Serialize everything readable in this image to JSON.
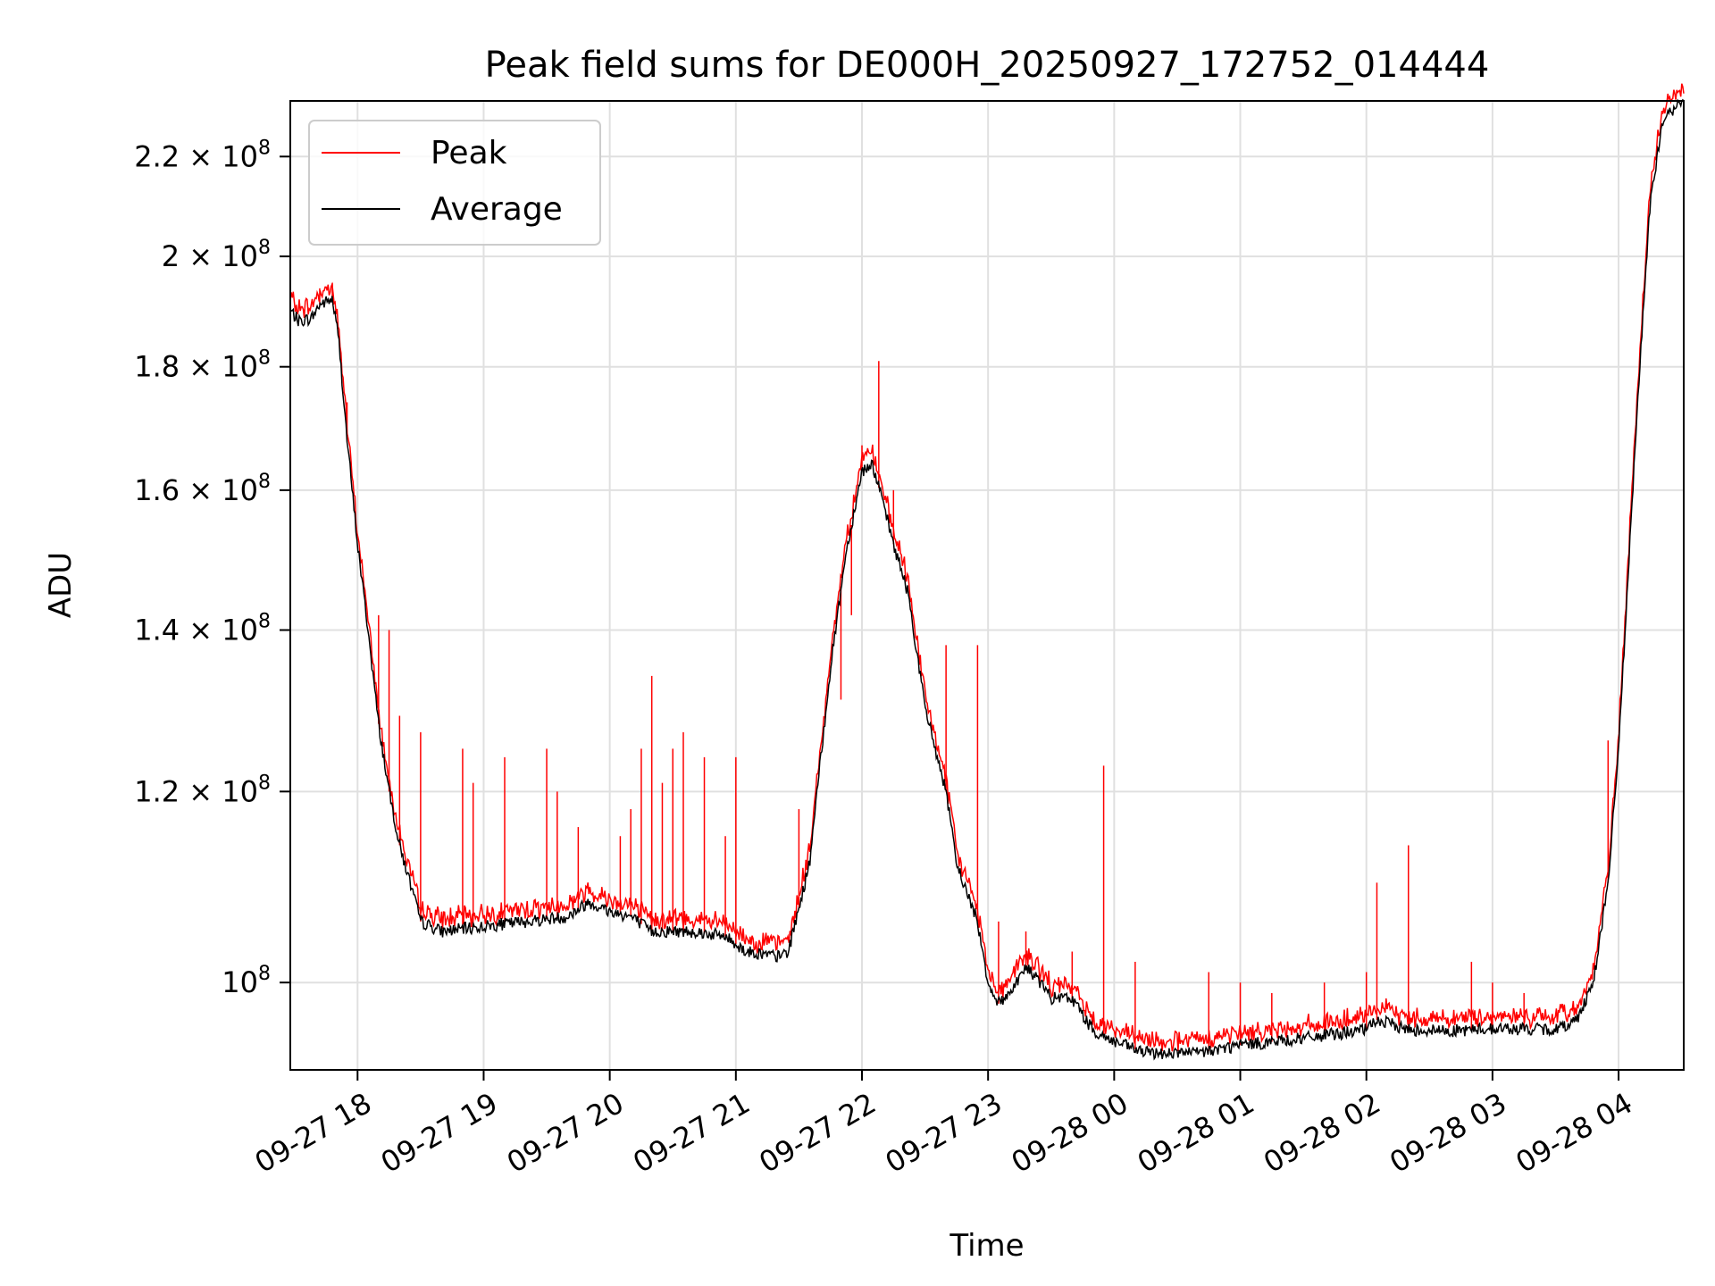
{
  "chart_data": {
    "type": "line",
    "title": "Peak field sums for DE000H_20250927_172752_014444",
    "xlabel": "Time",
    "ylabel": "ADU",
    "yscale": "log",
    "ylim": [
      92000000,
      232000000
    ],
    "xlim": [
      "2025-09-27 17:28",
      "2025-09-28 04:31"
    ],
    "grid": true,
    "legend": {
      "placement": "top-left"
    },
    "x_ticks": [
      "2025-09-27 18:00",
      "2025-09-27 19:00",
      "2025-09-27 20:00",
      "2025-09-27 21:00",
      "2025-09-27 22:00",
      "2025-09-27 23:00",
      "2025-09-28 00:00",
      "2025-09-28 01:00",
      "2025-09-28 02:00",
      "2025-09-28 03:00",
      "2025-09-28 04:00"
    ],
    "x_tick_labels": [
      "09-27 18",
      "09-27 19",
      "09-27 20",
      "09-27 21",
      "09-27 22",
      "09-27 23",
      "09-28 00",
      "09-28 01",
      "09-28 02",
      "09-28 03",
      "09-28 04"
    ],
    "y_ticks": [
      100000000,
      120000000,
      140000000,
      160000000,
      180000000,
      200000000,
      220000000
    ],
    "y_tick_labels": [
      {
        "mantissa": "",
        "exponent": "8"
      },
      {
        "mantissa": "1.2",
        "exponent": "8"
      },
      {
        "mantissa": "1.4",
        "exponent": "8"
      },
      {
        "mantissa": "1.6",
        "exponent": "8"
      },
      {
        "mantissa": "1.8",
        "exponent": "8"
      },
      {
        "mantissa": "2",
        "exponent": "8"
      },
      {
        "mantissa": "2.2",
        "exponent": "8"
      }
    ],
    "average_points": [
      [
        "2025-09-27 17:28",
        190000000
      ],
      [
        "2025-09-27 17:32",
        188000000
      ],
      [
        "2025-09-27 17:38",
        188500000
      ],
      [
        "2025-09-27 17:42",
        191000000
      ],
      [
        "2025-09-27 17:48",
        192000000
      ],
      [
        "2025-09-27 17:51",
        185000000
      ],
      [
        "2025-09-27 17:55",
        168000000
      ],
      [
        "2025-09-27 18:00",
        152000000
      ],
      [
        "2025-09-27 18:05",
        140000000
      ],
      [
        "2025-09-27 18:10",
        128000000
      ],
      [
        "2025-09-27 18:15",
        120000000
      ],
      [
        "2025-09-27 18:20",
        114000000
      ],
      [
        "2025-09-27 18:25",
        110000000
      ],
      [
        "2025-09-27 18:30",
        106000000
      ],
      [
        "2025-09-27 18:40",
        105000000
      ],
      [
        "2025-09-27 19:00",
        105500000
      ],
      [
        "2025-09-27 19:20",
        106000000
      ],
      [
        "2025-09-27 19:40",
        106500000
      ],
      [
        "2025-09-27 19:50",
        108000000
      ],
      [
        "2025-09-27 20:00",
        107000000
      ],
      [
        "2025-09-27 20:10",
        106500000
      ],
      [
        "2025-09-27 20:20",
        105000000
      ],
      [
        "2025-09-27 20:40",
        105000000
      ],
      [
        "2025-09-27 20:55",
        104500000
      ],
      [
        "2025-09-27 21:05",
        103000000
      ],
      [
        "2025-09-27 21:20",
        102500000
      ],
      [
        "2025-09-27 21:25",
        103000000
      ],
      [
        "2025-09-27 21:35",
        112000000
      ],
      [
        "2025-09-27 21:45",
        135000000
      ],
      [
        "2025-09-27 21:52",
        150000000
      ],
      [
        "2025-09-27 22:00",
        163000000
      ],
      [
        "2025-09-27 22:05",
        164000000
      ],
      [
        "2025-09-27 22:10",
        158000000
      ],
      [
        "2025-09-27 22:15",
        152000000
      ],
      [
        "2025-09-27 22:22",
        145000000
      ],
      [
        "2025-09-27 22:30",
        130000000
      ],
      [
        "2025-09-27 22:40",
        120000000
      ],
      [
        "2025-09-27 22:45",
        112000000
      ],
      [
        "2025-09-27 22:55",
        106000000
      ],
      [
        "2025-09-27 23:00",
        100000000
      ],
      [
        "2025-09-27 23:05",
        98000000
      ],
      [
        "2025-09-27 23:10",
        99000000
      ],
      [
        "2025-09-27 23:18",
        101500000
      ],
      [
        "2025-09-27 23:25",
        100000000
      ],
      [
        "2025-09-27 23:30",
        98500000
      ],
      [
        "2025-09-27 23:40",
        98500000
      ],
      [
        "2025-09-27 23:50",
        95500000
      ],
      [
        "2025-09-28 00:00",
        94500000
      ],
      [
        "2025-09-28 00:15",
        93500000
      ],
      [
        "2025-09-28 00:40",
        93500000
      ],
      [
        "2025-09-28 01:00",
        94200000
      ],
      [
        "2025-09-28 01:30",
        94800000
      ],
      [
        "2025-09-28 02:00",
        95600000
      ],
      [
        "2025-09-28 02:05",
        96500000
      ],
      [
        "2025-09-28 02:20",
        95600000
      ],
      [
        "2025-09-28 02:40",
        95500000
      ],
      [
        "2025-09-28 03:00",
        95700000
      ],
      [
        "2025-09-28 03:30",
        95600000
      ],
      [
        "2025-09-28 03:40",
        96500000
      ],
      [
        "2025-09-28 03:48",
        100000000
      ],
      [
        "2025-09-28 03:55",
        110000000
      ],
      [
        "2025-09-28 04:00",
        125000000
      ],
      [
        "2025-09-28 04:05",
        150000000
      ],
      [
        "2025-09-28 04:10",
        180000000
      ],
      [
        "2025-09-28 04:15",
        210000000
      ],
      [
        "2025-09-28 04:21",
        228000000
      ],
      [
        "2025-09-28 04:31",
        232000000
      ]
    ],
    "peak_spikes": [
      [
        "2025-09-27 17:42",
        194000000
      ],
      [
        "2025-09-27 17:48",
        195000000
      ],
      [
        "2025-09-27 17:55",
        174000000
      ],
      [
        "2025-09-27 18:10",
        142000000
      ],
      [
        "2025-09-27 18:15",
        140000000
      ],
      [
        "2025-09-27 18:20",
        129000000
      ],
      [
        "2025-09-27 18:30",
        127000000
      ],
      [
        "2025-09-27 18:50",
        125000000
      ],
      [
        "2025-09-27 18:55",
        121000000
      ],
      [
        "2025-09-27 19:10",
        124000000
      ],
      [
        "2025-09-27 19:30",
        125000000
      ],
      [
        "2025-09-27 19:35",
        120000000
      ],
      [
        "2025-09-27 19:45",
        116000000
      ],
      [
        "2025-09-27 20:05",
        115000000
      ],
      [
        "2025-09-27 20:10",
        118000000
      ],
      [
        "2025-09-27 20:15",
        125000000
      ],
      [
        "2025-09-27 20:20",
        134000000
      ],
      [
        "2025-09-27 20:25",
        121000000
      ],
      [
        "2025-09-27 20:30",
        125000000
      ],
      [
        "2025-09-27 20:35",
        127000000
      ],
      [
        "2025-09-27 20:45",
        124000000
      ],
      [
        "2025-09-27 20:55",
        115000000
      ],
      [
        "2025-09-27 21:00",
        124000000
      ],
      [
        "2025-09-27 21:30",
        118000000
      ],
      [
        "2025-09-27 21:50",
        131000000
      ],
      [
        "2025-09-27 21:55",
        142000000
      ],
      [
        "2025-09-27 22:00",
        167000000
      ],
      [
        "2025-09-27 22:08",
        181000000
      ],
      [
        "2025-09-27 22:15",
        160000000
      ],
      [
        "2025-09-27 22:40",
        138000000
      ],
      [
        "2025-09-27 22:55",
        138000000
      ],
      [
        "2025-09-27 23:05",
        106000000
      ],
      [
        "2025-09-27 23:18",
        105000000
      ],
      [
        "2025-09-27 23:40",
        103000000
      ],
      [
        "2025-09-27 23:55",
        123000000
      ],
      [
        "2025-09-28 00:10",
        102000000
      ],
      [
        "2025-09-28 00:45",
        101000000
      ],
      [
        "2025-09-28 01:00",
        100000000
      ],
      [
        "2025-09-28 01:15",
        99000000
      ],
      [
        "2025-09-28 01:40",
        100000000
      ],
      [
        "2025-09-28 02:00",
        101000000
      ],
      [
        "2025-09-28 02:05",
        110000000
      ],
      [
        "2025-09-28 02:20",
        114000000
      ],
      [
        "2025-09-28 02:50",
        102000000
      ],
      [
        "2025-09-28 03:00",
        100000000
      ],
      [
        "2025-09-28 03:15",
        99000000
      ],
      [
        "2025-09-28 03:55",
        126000000
      ]
    ],
    "series": [
      {
        "name": "Peak",
        "color": "#ff0000"
      },
      {
        "name": "Average",
        "color": "#000000"
      }
    ]
  }
}
